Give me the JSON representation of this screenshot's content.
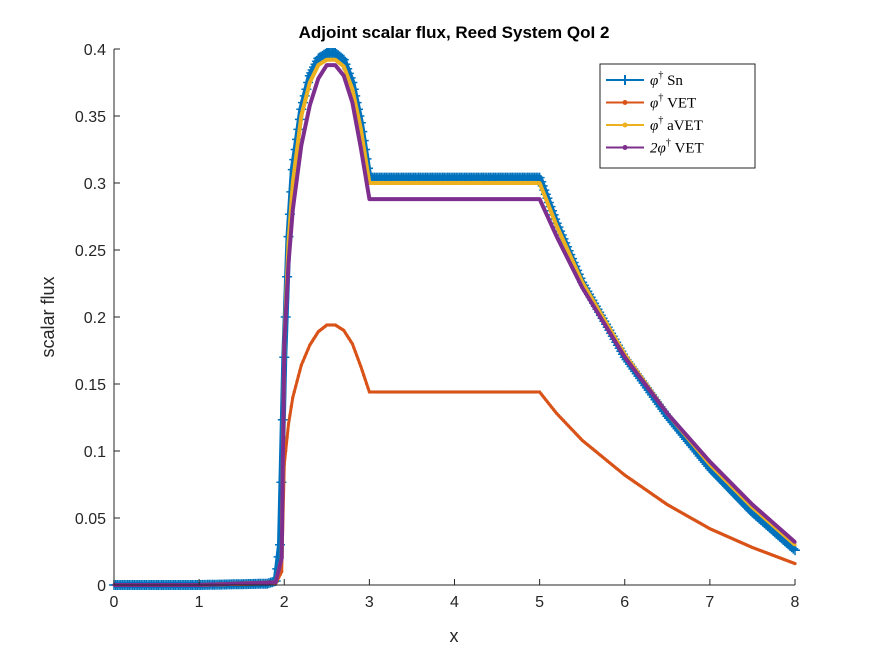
{
  "chart_data": {
    "type": "line",
    "title": "Adjoint scalar flux, Reed System QoI 2",
    "xlabel": "x",
    "ylabel": "scalar flux",
    "xlim": [
      0,
      8
    ],
    "ylim": [
      0,
      0.4
    ],
    "xticks": [
      "0",
      "1",
      "2",
      "3",
      "4",
      "5",
      "6",
      "7",
      "8"
    ],
    "yticks": [
      "0",
      "0.05",
      "0.1",
      "0.15",
      "0.2",
      "0.25",
      "0.3",
      "0.35",
      "0.4"
    ],
    "grid": false,
    "legend_position": "top-right",
    "series": [
      {
        "name": "φ† Sn",
        "legend": {
          "sym": "φ",
          "sup": "†",
          "rest": " Sn"
        },
        "color": "#0072BD",
        "marker": "plus",
        "points": [
          [
            0,
            0
          ],
          [
            1,
            0
          ],
          [
            1.8,
            0.001
          ],
          [
            1.9,
            0.003
          ],
          [
            1.95,
            0.03
          ],
          [
            2.0,
            0.17
          ],
          [
            2.05,
            0.26
          ],
          [
            2.1,
            0.31
          ],
          [
            2.2,
            0.355
          ],
          [
            2.3,
            0.38
          ],
          [
            2.4,
            0.393
          ],
          [
            2.5,
            0.397
          ],
          [
            2.6,
            0.397
          ],
          [
            2.7,
            0.392
          ],
          [
            2.8,
            0.375
          ],
          [
            2.9,
            0.345
          ],
          [
            2.95,
            0.325
          ],
          [
            3.0,
            0.304
          ],
          [
            3.5,
            0.304
          ],
          [
            4.0,
            0.304
          ],
          [
            4.5,
            0.304
          ],
          [
            5.0,
            0.304
          ],
          [
            5.2,
            0.27
          ],
          [
            5.5,
            0.226
          ],
          [
            6.0,
            0.17
          ],
          [
            6.5,
            0.126
          ],
          [
            7.0,
            0.087
          ],
          [
            7.5,
            0.054
          ],
          [
            8.0,
            0.026
          ]
        ]
      },
      {
        "name": "φ† VET",
        "legend": {
          "sym": "φ",
          "sup": "†",
          "rest": " VET"
        },
        "color": "#D95319",
        "marker": "dot",
        "points": [
          [
            0,
            0
          ],
          [
            1,
            0
          ],
          [
            1.9,
            0.001
          ],
          [
            1.97,
            0.01
          ],
          [
            2.0,
            0.09
          ],
          [
            2.05,
            0.12
          ],
          [
            2.1,
            0.14
          ],
          [
            2.2,
            0.164
          ],
          [
            2.3,
            0.179
          ],
          [
            2.4,
            0.189
          ],
          [
            2.5,
            0.194
          ],
          [
            2.6,
            0.194
          ],
          [
            2.7,
            0.19
          ],
          [
            2.8,
            0.18
          ],
          [
            2.9,
            0.163
          ],
          [
            3.0,
            0.144
          ],
          [
            3.5,
            0.144
          ],
          [
            4.0,
            0.144
          ],
          [
            4.5,
            0.144
          ],
          [
            5.0,
            0.144
          ],
          [
            5.2,
            0.128
          ],
          [
            5.5,
            0.108
          ],
          [
            6.0,
            0.082
          ],
          [
            6.5,
            0.06
          ],
          [
            7.0,
            0.042
          ],
          [
            7.5,
            0.028
          ],
          [
            8.0,
            0.016
          ]
        ]
      },
      {
        "name": "φ† aVET",
        "legend": {
          "sym": "φ",
          "sup": "†",
          "rest": " aVET"
        },
        "color": "#EDB120",
        "marker": "dot",
        "points": [
          [
            0,
            0
          ],
          [
            1,
            0
          ],
          [
            1.9,
            0.002
          ],
          [
            1.97,
            0.02
          ],
          [
            2.0,
            0.18
          ],
          [
            2.05,
            0.255
          ],
          [
            2.1,
            0.3
          ],
          [
            2.2,
            0.35
          ],
          [
            2.3,
            0.375
          ],
          [
            2.4,
            0.388
          ],
          [
            2.5,
            0.392
          ],
          [
            2.6,
            0.392
          ],
          [
            2.7,
            0.387
          ],
          [
            2.8,
            0.37
          ],
          [
            2.9,
            0.34
          ],
          [
            3.0,
            0.3
          ],
          [
            3.5,
            0.3
          ],
          [
            4.0,
            0.3
          ],
          [
            4.5,
            0.3
          ],
          [
            5.0,
            0.3
          ],
          [
            5.2,
            0.268
          ],
          [
            5.5,
            0.226
          ],
          [
            6.0,
            0.172
          ],
          [
            6.5,
            0.128
          ],
          [
            7.0,
            0.09
          ],
          [
            7.5,
            0.058
          ],
          [
            8.0,
            0.03
          ]
        ]
      },
      {
        "name": "2φ† VET",
        "legend": {
          "sym": "2φ",
          "sup": "†",
          "rest": " VET"
        },
        "color": "#7E2F8E",
        "marker": "dot",
        "points": [
          [
            0,
            0
          ],
          [
            1,
            0
          ],
          [
            1.9,
            0.002
          ],
          [
            1.97,
            0.02
          ],
          [
            2.0,
            0.18
          ],
          [
            2.05,
            0.24
          ],
          [
            2.1,
            0.28
          ],
          [
            2.2,
            0.328
          ],
          [
            2.3,
            0.358
          ],
          [
            2.4,
            0.378
          ],
          [
            2.5,
            0.388
          ],
          [
            2.6,
            0.388
          ],
          [
            2.7,
            0.38
          ],
          [
            2.8,
            0.36
          ],
          [
            2.9,
            0.326
          ],
          [
            3.0,
            0.288
          ],
          [
            3.5,
            0.288
          ],
          [
            4.0,
            0.288
          ],
          [
            4.5,
            0.288
          ],
          [
            5.0,
            0.288
          ],
          [
            5.2,
            0.26
          ],
          [
            5.5,
            0.222
          ],
          [
            6.0,
            0.17
          ],
          [
            6.5,
            0.128
          ],
          [
            7.0,
            0.092
          ],
          [
            7.5,
            0.06
          ],
          [
            8.0,
            0.032
          ]
        ]
      }
    ]
  }
}
